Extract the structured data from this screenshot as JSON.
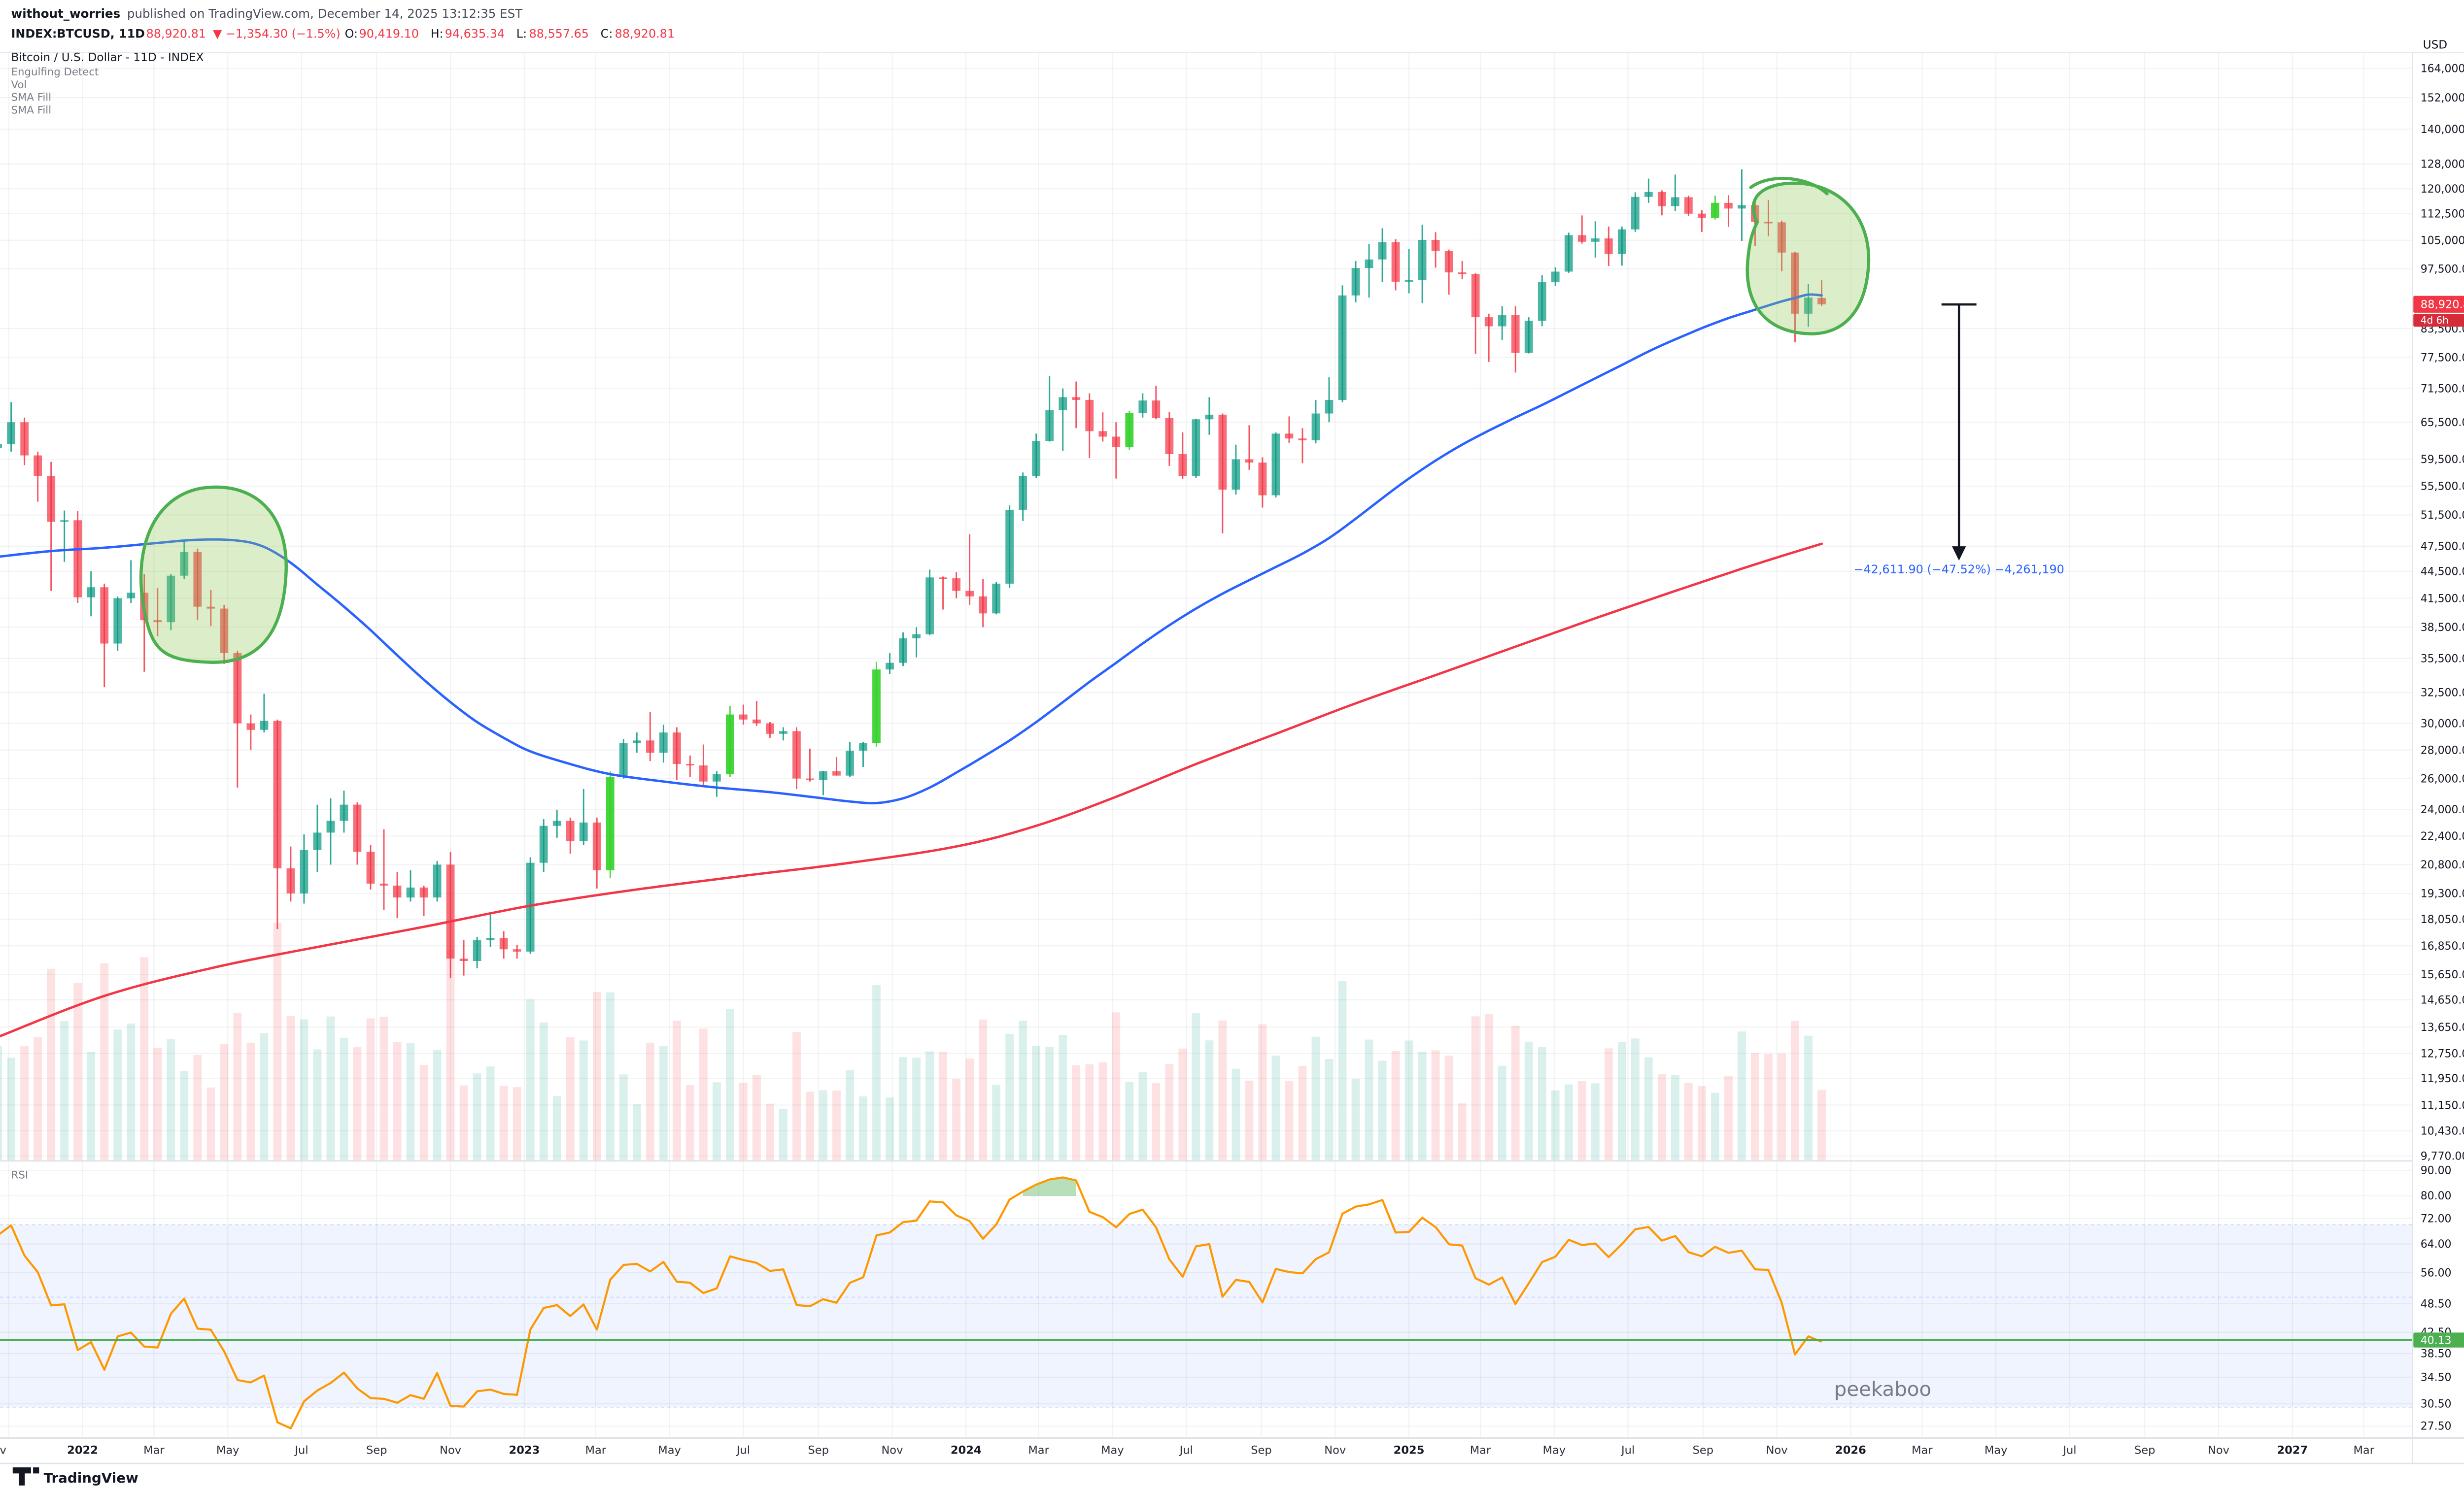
{
  "header": {
    "publisher": "without_worries",
    "published_note": "published on TradingView.com, December 14, 2025 13:12:35 EST",
    "symbol_line": {
      "symbol": "INDEX:BTCUSD, 11D",
      "last_price": "88,920.81",
      "change": "▼ −1,354.30 (−1.5%)",
      "o_label": "O:",
      "o": "90,419.10",
      "h_label": "H:",
      "h": "94,635.34",
      "l_label": "L:",
      "l": "88,557.65",
      "c_label": "C:",
      "c": "88,920.81"
    }
  },
  "legend": {
    "title": "Bitcoin / U.S. Dollar - 11D - INDEX",
    "indicators": [
      "Engulfing Detect",
      "Vol",
      "SMA Fill",
      "SMA Fill"
    ],
    "rsi_label": "RSI"
  },
  "axis": {
    "currency": "USD",
    "price_ticks": [
      164000,
      152000,
      140000,
      128000,
      120000,
      112500,
      105000,
      97500,
      83500,
      77500,
      71500,
      65500,
      59500,
      55500,
      51500,
      47500,
      44500,
      41500,
      38500,
      35500,
      32500,
      30000,
      28000,
      26000,
      24000,
      22400,
      20800,
      19300,
      18050,
      16850,
      15650,
      14650,
      13650,
      12750,
      11950,
      11150,
      10430,
      9770
    ],
    "rsi_ticks": [
      90,
      80,
      72,
      64,
      56,
      48.5,
      42.5,
      38.5,
      34.5,
      30.5,
      27.5
    ],
    "price_tag": {
      "value": "88,920.81",
      "countdown": "4d 6h"
    },
    "rsi_tag": "40.13",
    "time_ticks": [
      {
        "label": "Nov",
        "date": "2021-11-01",
        "clip": true
      },
      {
        "label": "2022",
        "date": "2022-01-01",
        "major": true
      },
      {
        "label": "Mar",
        "date": "2022-03-01"
      },
      {
        "label": "May",
        "date": "2022-05-01"
      },
      {
        "label": "Jul",
        "date": "2022-07-01"
      },
      {
        "label": "Sep",
        "date": "2022-09-01"
      },
      {
        "label": "Nov",
        "date": "2022-11-01"
      },
      {
        "label": "2023",
        "date": "2023-01-01",
        "major": true
      },
      {
        "label": "Mar",
        "date": "2023-03-01"
      },
      {
        "label": "May",
        "date": "2023-05-01"
      },
      {
        "label": "Jul",
        "date": "2023-07-01"
      },
      {
        "label": "Sep",
        "date": "2023-09-01"
      },
      {
        "label": "Nov",
        "date": "2023-11-01"
      },
      {
        "label": "2024",
        "date": "2024-01-01",
        "major": true
      },
      {
        "label": "Mar",
        "date": "2024-03-01"
      },
      {
        "label": "May",
        "date": "2024-05-01"
      },
      {
        "label": "Jul",
        "date": "2024-07-01"
      },
      {
        "label": "Sep",
        "date": "2024-09-01"
      },
      {
        "label": "Nov",
        "date": "2024-11-01"
      },
      {
        "label": "2025",
        "date": "2025-01-01",
        "major": true
      },
      {
        "label": "Mar",
        "date": "2025-03-01"
      },
      {
        "label": "May",
        "date": "2025-05-01"
      },
      {
        "label": "Jul",
        "date": "2025-07-01"
      },
      {
        "label": "Sep",
        "date": "2025-09-01"
      },
      {
        "label": "Nov",
        "date": "2025-11-01"
      },
      {
        "label": "2026",
        "date": "2026-01-01",
        "major": true
      },
      {
        "label": "Mar",
        "date": "2026-03-01"
      },
      {
        "label": "May",
        "date": "2026-05-01"
      },
      {
        "label": "Jul",
        "date": "2026-07-01"
      },
      {
        "label": "Sep",
        "date": "2026-09-01"
      },
      {
        "label": "Nov",
        "date": "2026-11-01"
      },
      {
        "label": "2027",
        "date": "2027-01-01",
        "major": true
      },
      {
        "label": "Mar",
        "date": "2027-03-01"
      }
    ]
  },
  "annotations": {
    "measure_text": "−42,611.90 (−47.52%) −4,261,190",
    "peekaboo": "peekaboo"
  },
  "footer": {
    "brand": "TradingView"
  },
  "chart_data": {
    "type": "candlestick",
    "symbol": "Bitcoin / U.S. Dollar (INDEX:BTCUSD)",
    "interval_days": 11,
    "first_bar_date": "2021-10-23",
    "log_scale": true,
    "price_axis_range": [
      9770,
      164000
    ],
    "candles": [
      [
        61300,
        63000,
        57700,
        61900
      ],
      [
        61900,
        69000,
        60700,
        65500
      ],
      [
        65500,
        66300,
        58600,
        60100
      ],
      [
        60100,
        60700,
        53300,
        57000
      ],
      [
        57000,
        59100,
        42300,
        50600
      ],
      [
        50600,
        52100,
        45600,
        50800
      ],
      [
        50800,
        52000,
        41000,
        41600
      ],
      [
        41600,
        44500,
        39600,
        42700
      ],
      [
        42700,
        43100,
        32950,
        36900
      ],
      [
        36900,
        41700,
        36200,
        41500
      ],
      [
        41500,
        45800,
        41000,
        42100
      ],
      [
        42100,
        44200,
        34300,
        39200
      ],
      [
        39200,
        42600,
        37600,
        39000
      ],
      [
        39000,
        44200,
        38200,
        44000
      ],
      [
        44000,
        48200,
        43600,
        46800
      ],
      [
        46800,
        47200,
        39200,
        40600
      ],
      [
        40600,
        42400,
        38600,
        40400
      ],
      [
        40400,
        40800,
        35000,
        36000
      ],
      [
        36000,
        36200,
        25400,
        30000
      ],
      [
        30000,
        30700,
        28000,
        29500
      ],
      [
        29500,
        32400,
        29300,
        30200
      ],
      [
        30200,
        30300,
        17600,
        20600
      ],
      [
        20600,
        21800,
        18900,
        19300
      ],
      [
        19300,
        22500,
        18800,
        21600
      ],
      [
        21600,
        24300,
        20400,
        22600
      ],
      [
        22600,
        24700,
        20800,
        23300
      ],
      [
        23300,
        25200,
        22600,
        24300
      ],
      [
        24300,
        24450,
        20800,
        21500
      ],
      [
        21500,
        21900,
        19500,
        19800
      ],
      [
        19800,
        22800,
        18500,
        19700
      ],
      [
        19700,
        20400,
        18100,
        19100
      ],
      [
        19100,
        20500,
        18900,
        19600
      ],
      [
        19600,
        19700,
        18200,
        19100
      ],
      [
        19100,
        21000,
        18900,
        20800
      ],
      [
        20800,
        21500,
        15500,
        16300
      ],
      [
        16300,
        17100,
        15600,
        16200
      ],
      [
        16200,
        17250,
        15900,
        17100
      ],
      [
        17100,
        18400,
        16800,
        17200
      ],
      [
        17200,
        17500,
        16300,
        16700
      ],
      [
        16700,
        16900,
        16300,
        16600
      ],
      [
        16600,
        21200,
        16500,
        20900
      ],
      [
        20900,
        23400,
        20400,
        23000
      ],
      [
        23000,
        23950,
        22300,
        23300
      ],
      [
        23300,
        23500,
        21400,
        22100
      ],
      [
        22100,
        25300,
        21900,
        23200
      ],
      [
        23200,
        23500,
        19550,
        20500
      ],
      [
        20500,
        26500,
        20100,
        26100
      ],
      [
        26100,
        28800,
        26000,
        28500
      ],
      [
        28500,
        29300,
        27800,
        28700
      ],
      [
        28700,
        30900,
        27200,
        27800
      ],
      [
        27800,
        29900,
        27100,
        29300
      ],
      [
        29300,
        29700,
        25900,
        27000
      ],
      [
        27000,
        27600,
        26100,
        26900
      ],
      [
        26900,
        28400,
        25500,
        25800
      ],
      [
        25800,
        26500,
        24800,
        26300
      ],
      [
        26300,
        31400,
        26100,
        30700
      ],
      [
        30700,
        31500,
        29900,
        30300
      ],
      [
        30300,
        31800,
        29800,
        30000
      ],
      [
        30000,
        30100,
        28900,
        29200
      ],
      [
        29200,
        29700,
        28700,
        29400
      ],
      [
        29400,
        29700,
        25300,
        26000
      ],
      [
        26000,
        28100,
        25800,
        25900
      ],
      [
        25900,
        26500,
        24900,
        26500
      ],
      [
        26500,
        27500,
        26200,
        26200
      ],
      [
        26200,
        28600,
        26100,
        27950
      ],
      [
        27950,
        28600,
        26800,
        28500
      ],
      [
        28500,
        35200,
        28200,
        34500
      ],
      [
        34500,
        36000,
        34100,
        35100
      ],
      [
        35100,
        37980,
        34800,
        37400
      ],
      [
        37400,
        38500,
        35600,
        37800
      ],
      [
        37800,
        44700,
        37700,
        43800
      ],
      [
        43800,
        43900,
        40300,
        43700
      ],
      [
        43700,
        44400,
        41500,
        42300
      ],
      [
        42300,
        49000,
        40800,
        41700
      ],
      [
        41700,
        43600,
        38500,
        39900
      ],
      [
        39900,
        43300,
        39800,
        43100
      ],
      [
        43100,
        52800,
        42600,
        52200
      ],
      [
        52200,
        57500,
        50700,
        57000
      ],
      [
        57000,
        63600,
        56700,
        62400
      ],
      [
        62400,
        73800,
        62300,
        67600
      ],
      [
        67600,
        71500,
        60800,
        69900
      ],
      [
        69900,
        72800,
        64500,
        69400
      ],
      [
        69400,
        70600,
        59700,
        64000
      ],
      [
        64000,
        67200,
        62300,
        63100
      ],
      [
        63100,
        65500,
        56600,
        61400
      ],
      [
        61400,
        67400,
        61000,
        67100
      ],
      [
        67100,
        70600,
        66300,
        69300
      ],
      [
        69300,
        72000,
        66000,
        66200
      ],
      [
        66200,
        67300,
        58500,
        60300
      ],
      [
        60300,
        63800,
        56500,
        57000
      ],
      [
        57000,
        66100,
        56700,
        66000
      ],
      [
        66000,
        69900,
        63400,
        66800
      ],
      [
        66800,
        67000,
        49100,
        55000
      ],
      [
        55000,
        61800,
        54300,
        59500
      ],
      [
        59500,
        65000,
        57900,
        59000
      ],
      [
        59000,
        59800,
        52500,
        54200
      ],
      [
        54200,
        63800,
        53900,
        63600
      ],
      [
        63600,
        66500,
        62100,
        62800
      ],
      [
        62800,
        64500,
        58900,
        62500
      ],
      [
        62500,
        69400,
        62000,
        67000
      ],
      [
        67000,
        73600,
        65500,
        69400
      ],
      [
        69400,
        93400,
        69000,
        91000
      ],
      [
        91000,
        99500,
        89400,
        97700
      ],
      [
        97700,
        104000,
        90500,
        99900
      ],
      [
        99900,
        108300,
        94200,
        104500
      ],
      [
        104500,
        105300,
        92200,
        94300
      ],
      [
        94300,
        102700,
        91500,
        94700
      ],
      [
        94700,
        109300,
        89200,
        105100
      ],
      [
        105100,
        107200,
        97800,
        102100
      ],
      [
        102100,
        102500,
        91200,
        96600
      ],
      [
        96600,
        99500,
        95000,
        96200
      ],
      [
        96200,
        96400,
        78200,
        86000
      ],
      [
        86000,
        86800,
        76600,
        84000
      ],
      [
        84000,
        88500,
        81100,
        86500
      ],
      [
        86500,
        88500,
        74500,
        78400
      ],
      [
        78400,
        86000,
        78300,
        85200
      ],
      [
        85200,
        95900,
        84000,
        94200
      ],
      [
        94200,
        97900,
        93300,
        96800
      ],
      [
        96800,
        107100,
        96500,
        106400
      ],
      [
        106400,
        111980,
        104100,
        104600
      ],
      [
        104600,
        110300,
        100400,
        105500
      ],
      [
        105500,
        108800,
        98200,
        101300
      ],
      [
        101300,
        108800,
        98300,
        108000
      ],
      [
        108000,
        118900,
        107300,
        117500
      ],
      [
        117500,
        123200,
        115700,
        119000
      ],
      [
        119000,
        119500,
        112000,
        114700
      ],
      [
        114700,
        124500,
        113300,
        117400
      ],
      [
        117400,
        117900,
        111900,
        112500
      ],
      [
        112500,
        113500,
        107300,
        111300
      ],
      [
        111300,
        117900,
        110800,
        115700
      ],
      [
        115700,
        118000,
        108700,
        114000
      ],
      [
        114000,
        126200,
        104800,
        115000
      ],
      [
        115000,
        116100,
        103500,
        110100
      ],
      [
        110100,
        116500,
        106100,
        110000
      ],
      [
        110000,
        110500,
        96900,
        101700
      ],
      [
        101700,
        101900,
        80600,
        86800
      ],
      [
        86800,
        93700,
        83900,
        90500
      ],
      [
        90419.1,
        94635.34,
        88557.65,
        88920.81
      ]
    ],
    "engulfing_indices": [
      46,
      55,
      66,
      85,
      129
    ],
    "sma_blue": [
      [
        0,
        46200
      ],
      [
        4,
        46900
      ],
      [
        8,
        47300
      ],
      [
        12,
        47900
      ],
      [
        15,
        48300
      ],
      [
        18,
        48200
      ],
      [
        20,
        47400
      ],
      [
        22,
        45500
      ],
      [
        24,
        43000
      ],
      [
        26,
        40600
      ],
      [
        28,
        38200
      ],
      [
        30,
        35800
      ],
      [
        32,
        33600
      ],
      [
        34,
        31700
      ],
      [
        36,
        30100
      ],
      [
        38,
        28900
      ],
      [
        40,
        27900
      ],
      [
        43,
        27000
      ],
      [
        46,
        26300
      ],
      [
        50,
        25800
      ],
      [
        54,
        25400
      ],
      [
        58,
        25100
      ],
      [
        61,
        24800
      ],
      [
        64,
        24500
      ],
      [
        66,
        24400
      ],
      [
        68,
        24700
      ],
      [
        70,
        25400
      ],
      [
        72,
        26400
      ],
      [
        74,
        27500
      ],
      [
        76,
        28700
      ],
      [
        78,
        30100
      ],
      [
        80,
        31700
      ],
      [
        82,
        33400
      ],
      [
        84,
        35100
      ],
      [
        86,
        36900
      ],
      [
        88,
        38700
      ],
      [
        90,
        40400
      ],
      [
        92,
        42000
      ],
      [
        94,
        43500
      ],
      [
        96,
        45000
      ],
      [
        98,
        46600
      ],
      [
        100,
        48500
      ],
      [
        102,
        51000
      ],
      [
        104,
        53800
      ],
      [
        106,
        56600
      ],
      [
        108,
        59300
      ],
      [
        110,
        61800
      ],
      [
        112,
        64100
      ],
      [
        114,
        66300
      ],
      [
        116,
        68500
      ],
      [
        118,
        70900
      ],
      [
        120,
        73400
      ],
      [
        122,
        76000
      ],
      [
        124,
        78700
      ],
      [
        126,
        81200
      ],
      [
        128,
        83600
      ],
      [
        130,
        85800
      ],
      [
        132,
        87700
      ],
      [
        134,
        89600
      ],
      [
        135,
        90400
      ],
      [
        136,
        91200
      ],
      [
        137,
        91000
      ]
    ],
    "sma_red": [
      [
        0,
        13300
      ],
      [
        8,
        14800
      ],
      [
        16,
        15900
      ],
      [
        24,
        16800
      ],
      [
        32,
        17700
      ],
      [
        40,
        18700
      ],
      [
        48,
        19500
      ],
      [
        56,
        20200
      ],
      [
        64,
        20900
      ],
      [
        72,
        21800
      ],
      [
        78,
        23000
      ],
      [
        84,
        24800
      ],
      [
        90,
        27000
      ],
      [
        96,
        29200
      ],
      [
        102,
        31600
      ],
      [
        108,
        34000
      ],
      [
        114,
        36600
      ],
      [
        120,
        39400
      ],
      [
        126,
        42300
      ],
      [
        131,
        44800
      ],
      [
        134,
        46300
      ],
      [
        137,
        47800
      ]
    ],
    "rsi": {
      "period": 14,
      "seed_gain": 1800,
      "seed_loss": 900,
      "current": 40.13,
      "overbought": 70,
      "oversold": 30,
      "overbought_fill_above": 80,
      "hline": 41
    },
    "colors": {
      "up": "#089981",
      "down": "#f23645",
      "engulf": "#35d12c",
      "sma_fast": "#2962ff",
      "sma_slow": "#f23645",
      "rsi": "#ff9800",
      "hline": "#4caf50",
      "measure": "#2962ff",
      "tag_price_bg": "#f23645",
      "tag_rsi_bg": "#4caf50",
      "circle_stroke": "#4caf50",
      "circle_fill": "rgba(144,202,86,0.32)",
      "vol_up": "rgba(8,153,129,0.15)",
      "vol_down": "rgba(242,54,69,0.15)",
      "band_fill": "rgba(41,98,255,0.07)",
      "grid": "rgba(42,46,57,0.06)"
    }
  }
}
